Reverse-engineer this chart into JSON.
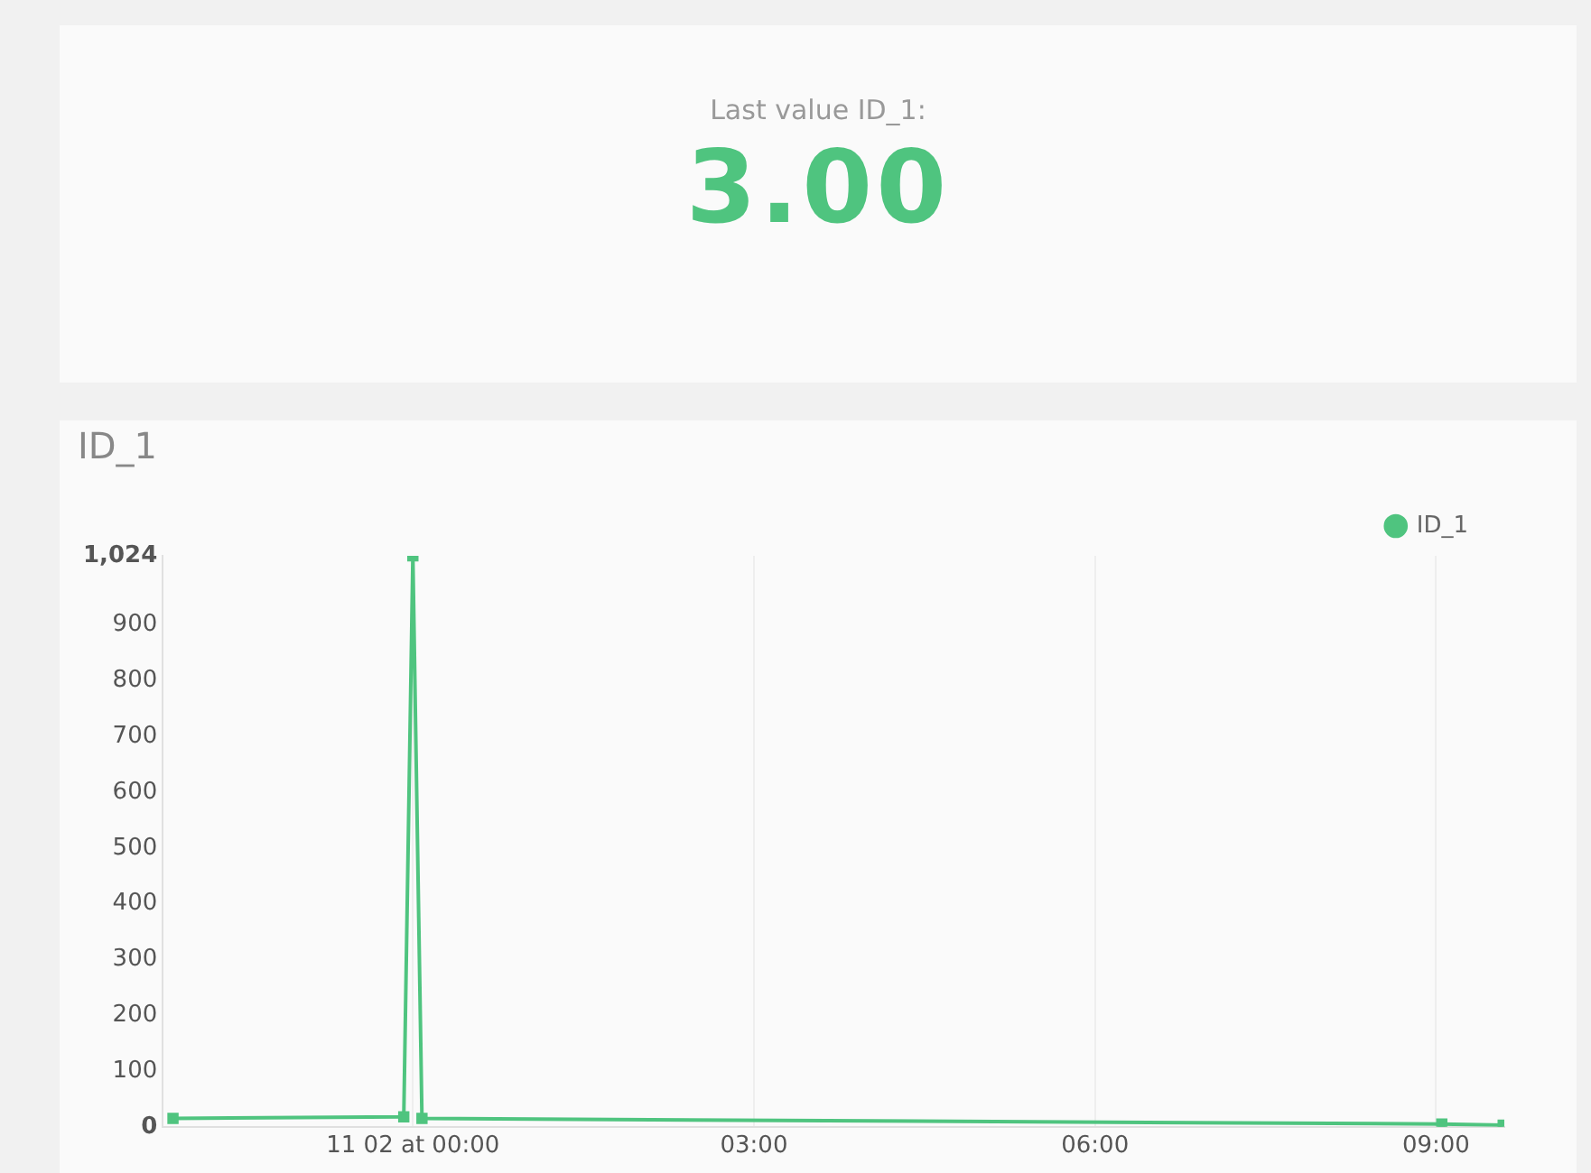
{
  "chart_data": [
    {
      "type": "other",
      "title": "Last value ID_1:",
      "annotations": [
        "3.00"
      ],
      "color": "#4fc47f"
    },
    {
      "type": "line",
      "title": "ID_1",
      "x": [
        -2.11,
        -0.08,
        0,
        0.08,
        9.05,
        9.59
      ],
      "series": [
        {
          "name": "ID_1",
          "color": "#4fc47f",
          "values": [
            15,
            18,
            1024,
            15,
            5,
            3
          ]
        }
      ],
      "xlim": [
        -2.2,
        9.6
      ],
      "xticks": [
        {
          "value": 0,
          "label": "11 02 at 00:00"
        },
        {
          "value": 3,
          "label": "03:00"
        },
        {
          "value": 6,
          "label": "06:00"
        },
        {
          "value": 9,
          "label": "09:00"
        }
      ],
      "ylim": [
        0,
        1024
      ],
      "yticks": [
        0,
        100,
        200,
        300,
        400,
        500,
        600,
        700,
        800,
        900,
        {
          "value": 1024,
          "label": "1,024"
        }
      ],
      "grid": "x",
      "legend": "top right",
      "marker": "square",
      "line_style": "solid"
    }
  ]
}
